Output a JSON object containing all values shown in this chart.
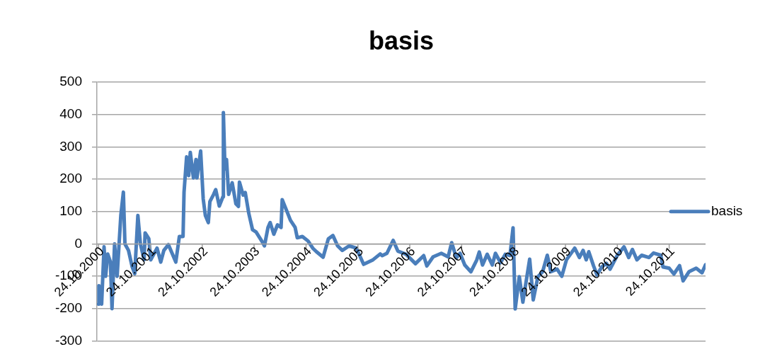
{
  "chart_data": {
    "type": "line",
    "title": "basis",
    "xlim": [
      "2000-10-13",
      "2012-07-06"
    ],
    "xticks": [
      {
        "value": "2000-10-24",
        "label": "24.10.2000"
      },
      {
        "value": "2001-10-24",
        "label": "24.10.2001"
      },
      {
        "value": "2002-10-24",
        "label": "24.10.2002"
      },
      {
        "value": "2003-10-24",
        "label": "24.10.2003"
      },
      {
        "value": "2004-10-24",
        "label": "24.10.2004"
      },
      {
        "value": "2005-10-24",
        "label": "24.10.2005"
      },
      {
        "value": "2006-10-24",
        "label": "24.10.2006"
      },
      {
        "value": "2007-10-24",
        "label": "24.10.2007"
      },
      {
        "value": "2008-10-24",
        "label": "24.10.2008"
      },
      {
        "value": "2009-10-24",
        "label": "24.10.2009"
      },
      {
        "value": "2010-10-24",
        "label": "24.10.2010"
      },
      {
        "value": "2011-10-24",
        "label": "24.10.2011"
      }
    ],
    "ylim": [
      -300,
      500
    ],
    "yticks": [
      -300,
      -200,
      -100,
      0,
      100,
      200,
      300,
      400,
      500
    ],
    "grid": "y",
    "legend": "right",
    "marker": "none",
    "series": [
      {
        "name": "basis",
        "color": "#4a7ebb",
        "x": [
          "2000-10-24",
          "2000-10-27",
          "2000-11-15",
          "2000-12-02",
          "2000-12-13",
          "2000-12-28",
          "2001-01-16",
          "2001-01-27",
          "2001-02-14",
          "2001-03-04",
          "2001-03-19",
          "2001-03-30",
          "2001-04-17",
          "2001-04-28",
          "2001-05-23",
          "2001-06-18",
          "2001-07-06",
          "2001-07-28",
          "2001-08-15",
          "2001-09-10",
          "2001-09-17",
          "2001-10-13",
          "2001-10-27",
          "2001-12-10",
          "2002-01-05",
          "2002-01-27",
          "2002-02-28",
          "2002-04-21",
          "2002-05-16",
          "2002-06-11",
          "2002-06-18",
          "2002-07-06",
          "2002-07-21",
          "2002-08-01",
          "2002-08-23",
          "2002-09-10",
          "2002-09-17",
          "2002-10-13",
          "2002-10-31",
          "2002-11-15",
          "2002-12-06",
          "2002-12-17",
          "2003-01-12",
          "2003-01-27",
          "2003-02-21",
          "2003-03-19",
          "2003-03-22",
          "2003-04-02",
          "2003-04-13",
          "2003-04-28",
          "2003-05-23",
          "2003-06-18",
          "2003-07-06",
          "2003-07-13",
          "2003-08-08",
          "2003-08-23",
          "2003-09-17",
          "2003-10-13",
          "2003-11-07",
          "2003-12-17",
          "2004-01-05",
          "2004-01-30",
          "2004-02-14",
          "2004-03-11",
          "2004-04-06",
          "2004-05-01",
          "2004-05-09",
          "2004-06-11",
          "2004-07-06",
          "2004-08-08",
          "2004-08-23",
          "2004-09-28",
          "2004-11-07",
          "2004-12-10",
          "2005-01-05",
          "2005-02-21",
          "2005-03-30",
          "2005-05-01",
          "2005-06-03",
          "2005-07-06",
          "2005-08-23",
          "2005-10-13",
          "2005-12-03",
          "2006-02-07",
          "2006-03-30",
          "2006-04-13",
          "2006-05-16",
          "2006-06-29",
          "2006-08-01",
          "2006-09-28",
          "2006-12-03",
          "2007-01-30",
          "2007-02-21",
          "2007-04-06",
          "2007-06-03",
          "2007-07-21",
          "2007-08-15",
          "2007-09-17",
          "2007-10-13",
          "2007-11-15",
          "2007-12-28",
          "2008-02-07",
          "2008-02-25",
          "2008-03-19",
          "2008-04-21",
          "2008-05-27",
          "2008-06-18",
          "2008-07-24",
          "2008-08-26",
          "2008-09-28",
          "2008-10-20",
          "2008-11-04",
          "2008-12-03",
          "2008-12-28",
          "2009-02-14",
          "2009-03-11",
          "2009-04-13",
          "2009-05-16",
          "2009-06-18",
          "2009-07-13",
          "2009-08-26",
          "2009-09-28",
          "2009-10-31",
          "2009-12-28",
          "2010-01-30",
          "2010-02-25",
          "2010-03-19",
          "2010-04-06",
          "2010-05-09",
          "2010-06-03",
          "2010-07-06",
          "2010-08-08",
          "2010-09-03",
          "2010-10-24",
          "2010-12-10",
          "2011-01-12",
          "2011-02-07",
          "2011-03-11",
          "2011-04-13",
          "2011-06-03",
          "2011-07-06",
          "2011-08-26",
          "2011-09-10",
          "2011-10-24",
          "2011-11-26",
          "2012-01-05",
          "2012-01-30",
          "2012-03-11",
          "2012-05-01",
          "2012-06-11",
          "2012-07-06"
        ],
        "values": [
          -186,
          -129,
          -186,
          -9,
          -100,
          -31,
          -56,
          -200,
          0,
          -100,
          9,
          88,
          160,
          0,
          -20,
          -71,
          -92,
          88,
          0,
          -49,
          34,
          16,
          -49,
          -13,
          -56,
          -20,
          -2,
          -56,
          23,
          23,
          160,
          269,
          211,
          283,
          204,
          261,
          204,
          287,
          139,
          88,
          66,
          131,
          153,
          168,
          117,
          146,
          406,
          232,
          261,
          153,
          189,
          124,
          116,
          191,
          151,
          159,
          94,
          44,
          37,
          9,
          -6,
          51,
          66,
          30,
          59,
          51,
          137,
          101,
          73,
          51,
          19,
          23,
          9,
          -13,
          -24,
          -41,
          16,
          26,
          -6,
          -20,
          -6,
          -13,
          -63,
          -49,
          -31,
          -36,
          -29,
          11,
          -22,
          -32,
          -61,
          -36,
          -68,
          -40,
          -29,
          -40,
          4,
          -43,
          -29,
          -65,
          -86,
          -50,
          -25,
          -65,
          -32,
          -65,
          -29,
          -58,
          -32,
          -36,
          50,
          -201,
          -101,
          -180,
          -47,
          -173,
          -101,
          -86,
          -35,
          -86,
          -78,
          -100,
          -49,
          -13,
          -42,
          -20,
          -49,
          -24,
          -67,
          -96,
          -71,
          -60,
          -78,
          -35,
          -9,
          -42,
          -17,
          -49,
          -35,
          -42,
          -28,
          -35,
          -71,
          -75,
          -93,
          -67,
          -114,
          -86,
          -75,
          -89,
          -64
        ]
      }
    ]
  }
}
